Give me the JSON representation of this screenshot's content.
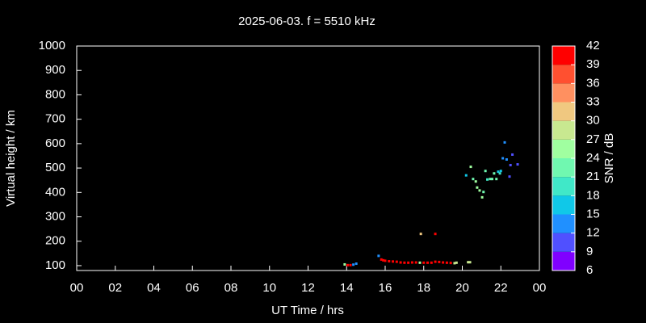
{
  "chart_data": {
    "type": "scatter",
    "title": "2025-06-03. f = 5510 kHz",
    "xlabel": "UT Time / hrs",
    "ylabel": "Virtual height / km",
    "x": [
      13.9,
      14.05,
      14.2,
      14.35,
      14.5,
      15.66,
      15.8,
      15.9,
      16.0,
      16.2,
      16.4,
      16.6,
      16.8,
      17.0,
      17.2,
      17.4,
      17.6,
      17.8,
      18.0,
      18.2,
      18.4,
      18.6,
      18.8,
      19.0,
      19.2,
      19.4,
      19.6,
      19.7,
      20.3,
      20.4,
      17.85,
      18.6,
      20.2,
      20.44,
      20.56,
      20.7,
      20.77,
      20.9,
      21.03,
      21.1,
      21.2,
      21.3,
      21.44,
      21.55,
      21.65,
      21.77,
      21.86,
      21.95,
      22.0,
      22.2,
      22.1,
      22.3,
      22.45,
      22.5,
      22.6,
      22.87
    ],
    "y": [
      105,
      102,
      102,
      104,
      108,
      140,
      125,
      122,
      120,
      118,
      117,
      116,
      113,
      112,
      112,
      113,
      113,
      112,
      112,
      112,
      112,
      116,
      115,
      113,
      112,
      111,
      110,
      112,
      114,
      114,
      230,
      230,
      470,
      505,
      455,
      445,
      420,
      408,
      380,
      402,
      488,
      453,
      455,
      455,
      478,
      455,
      485,
      478,
      488,
      605,
      540,
      535,
      465,
      512,
      555,
      515
    ],
    "snr": [
      24,
      39,
      40,
      12,
      12,
      13,
      40,
      40,
      40,
      40,
      40,
      40,
      40,
      40,
      40,
      40,
      40,
      24,
      40,
      40,
      40,
      40,
      40,
      39,
      40,
      39,
      27,
      27,
      27,
      27,
      31,
      40,
      16,
      25,
      22,
      24,
      25,
      26,
      25,
      22,
      21,
      20,
      21,
      21,
      23,
      21,
      17,
      18,
      17,
      13,
      12,
      12,
      11,
      11,
      11,
      10
    ],
    "xlim": [
      0,
      24
    ],
    "xticks": [
      {
        "value": 0,
        "label": "00"
      },
      {
        "value": 2,
        "label": "02"
      },
      {
        "value": 4,
        "label": "04"
      },
      {
        "value": 6,
        "label": "06"
      },
      {
        "value": 8,
        "label": "08"
      },
      10,
      12,
      14,
      16,
      18,
      20,
      22,
      {
        "value": 24,
        "label": "00"
      }
    ],
    "ylim": [
      80,
      1000
    ],
    "yticks": [
      100,
      200,
      300,
      400,
      500,
      600,
      700,
      800,
      900,
      1000
    ],
    "colorbar": {
      "label": "SNR / dB",
      "lim": [
        6,
        42
      ],
      "ticks": [
        6,
        9,
        12,
        15,
        18,
        21,
        24,
        27,
        30,
        33,
        36,
        39,
        42
      ],
      "colors": [
        "#8000ff",
        "#5050ff",
        "#2090ff",
        "#10c8e8",
        "#40e8c8",
        "#70f8b0",
        "#a0ffa0",
        "#c8e890",
        "#f0c880",
        "#ff9060",
        "#ff5030",
        "#ff0000"
      ]
    }
  }
}
